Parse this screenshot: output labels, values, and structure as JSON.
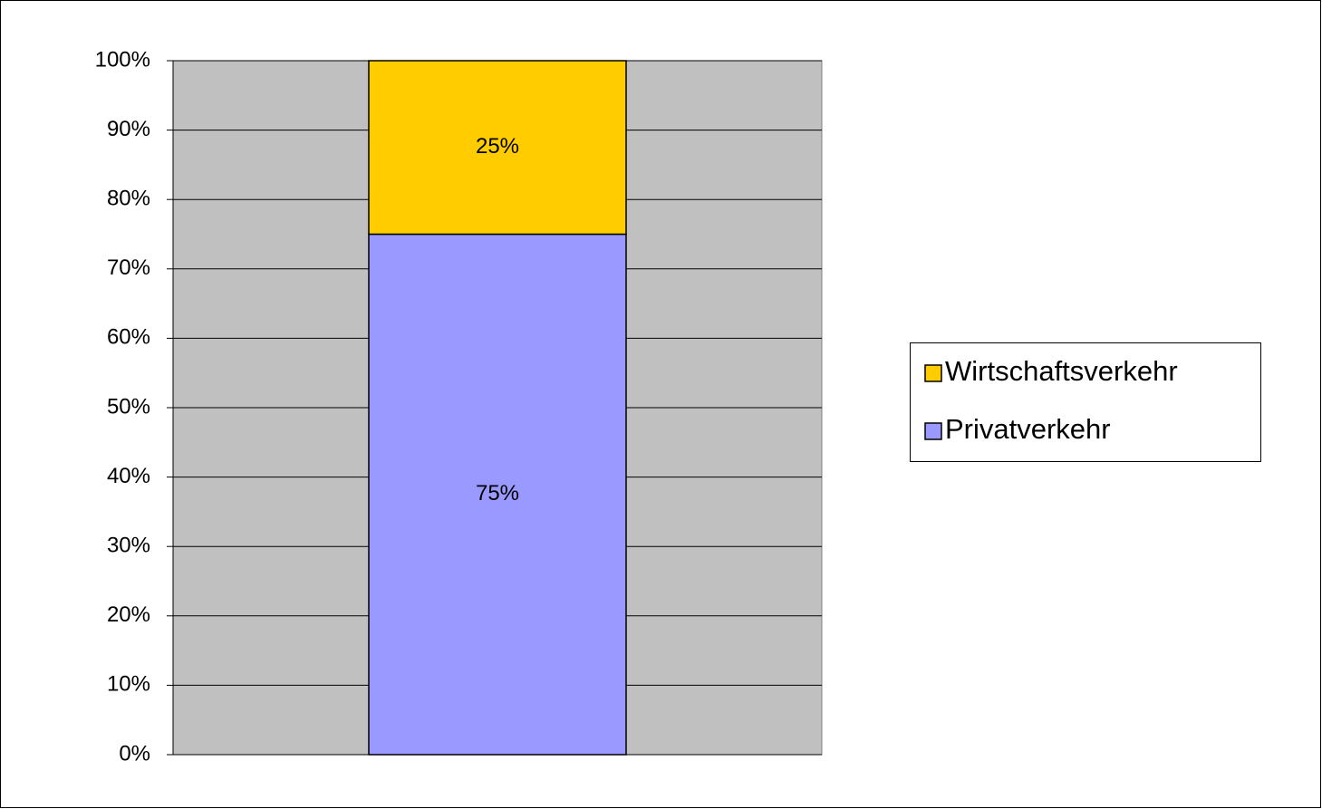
{
  "chart_data": {
    "type": "stacked_bar",
    "categories": [
      null
    ],
    "series": [
      {
        "name": "Privatverkehr",
        "color": "#9999ff",
        "values": [
          75
        ],
        "value_labels": [
          "75%"
        ]
      },
      {
        "name": "Wirtschaftsverkehr",
        "color": "#ffcc00",
        "values": [
          25
        ],
        "value_labels": [
          "25%"
        ]
      }
    ],
    "ylim": [
      0,
      100
    ],
    "yticks": [
      {
        "value": 0,
        "label": "0%"
      },
      {
        "value": 10,
        "label": "10%"
      },
      {
        "value": 20,
        "label": "20%"
      },
      {
        "value": 30,
        "label": "30%"
      },
      {
        "value": 40,
        "label": "40%"
      },
      {
        "value": 50,
        "label": "50%"
      },
      {
        "value": 60,
        "label": "60%"
      },
      {
        "value": 70,
        "label": "70%"
      },
      {
        "value": 80,
        "label": "80%"
      },
      {
        "value": 90,
        "label": "90%"
      },
      {
        "value": 100,
        "label": "100%"
      }
    ],
    "grid": true,
    "legend": "right"
  }
}
